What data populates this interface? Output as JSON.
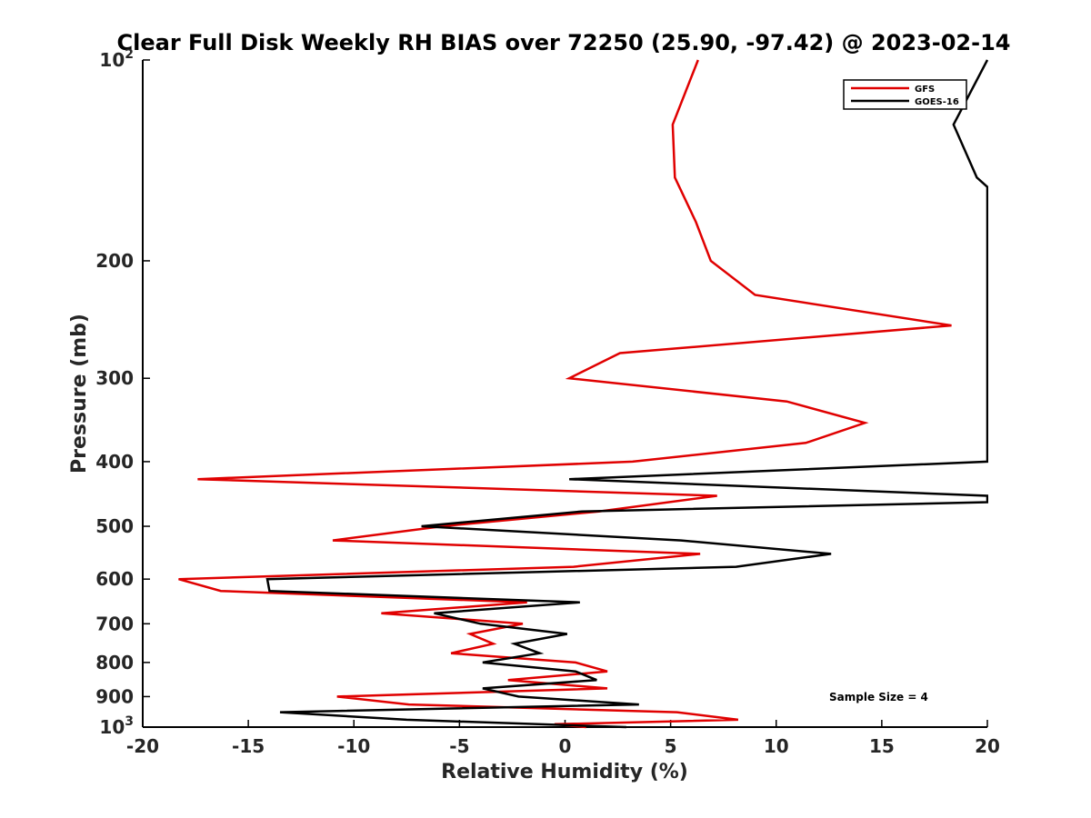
{
  "chart_data": {
    "type": "line",
    "title": "Clear Full Disk Weekly RH BIAS over 72250 (25.90, -97.42) @ 2023-02-14",
    "xlabel": "Relative Humidity (%)",
    "ylabel": "Pressure (mb)",
    "xlim": [
      -20,
      20
    ],
    "ylim": [
      100,
      1000
    ],
    "y_scale": "log",
    "y_reversed": true,
    "x_ticks": [
      "-20",
      "-15",
      "-10",
      "-5",
      "0",
      "5",
      "10",
      "15",
      "20"
    ],
    "y_ticks": [
      {
        "value": 100,
        "base": "10",
        "exp": "2"
      },
      {
        "value": 200,
        "label": "200"
      },
      {
        "value": 300,
        "label": "300"
      },
      {
        "value": 400,
        "label": "400"
      },
      {
        "value": 500,
        "label": "500"
      },
      {
        "value": 600,
        "label": "600"
      },
      {
        "value": 700,
        "label": "700"
      },
      {
        "value": 800,
        "label": "800"
      },
      {
        "value": 900,
        "label": "900"
      },
      {
        "value": 1000,
        "base": "10",
        "exp": "3"
      }
    ],
    "legend_position": "top-right",
    "grid": false,
    "annotation": "Sample Size = 4",
    "series": [
      {
        "name": "GFS",
        "color": "#e00000",
        "points": [
          [
            6.3,
            100
          ],
          [
            5.1,
            125
          ],
          [
            5.2,
            150
          ],
          [
            6.2,
            175
          ],
          [
            6.9,
            200
          ],
          [
            9.0,
            225
          ],
          [
            18.3,
            250
          ],
          [
            2.6,
            275
          ],
          [
            0.2,
            300
          ],
          [
            10.5,
            325
          ],
          [
            14.2,
            350
          ],
          [
            11.4,
            375
          ],
          [
            3.2,
            400
          ],
          [
            -17.4,
            425
          ],
          [
            7.2,
            450
          ],
          [
            1.6,
            475
          ],
          [
            -5.8,
            500
          ],
          [
            -11.0,
            525
          ],
          [
            6.4,
            550
          ],
          [
            0.4,
            575
          ],
          [
            -18.3,
            600
          ],
          [
            -16.3,
            625
          ],
          [
            -1.8,
            650
          ],
          [
            -8.7,
            675
          ],
          [
            -2.0,
            700
          ],
          [
            -4.5,
            725
          ],
          [
            -3.4,
            750
          ],
          [
            -5.4,
            775
          ],
          [
            0.5,
            800
          ],
          [
            2.0,
            825
          ],
          [
            -2.7,
            850
          ],
          [
            2.0,
            875
          ],
          [
            -10.8,
            900
          ],
          [
            -7.4,
            925
          ],
          [
            5.3,
            950
          ],
          [
            8.2,
            975
          ],
          [
            -0.5,
            990
          ],
          [
            1.0,
            1000
          ]
        ]
      },
      {
        "name": "GOES-16",
        "color": "#000000",
        "points": [
          [
            20.0,
            100
          ],
          [
            18.4,
            125
          ],
          [
            19.5,
            150
          ],
          [
            20.0,
            155
          ],
          [
            20.0,
            400
          ],
          [
            0.2,
            425
          ],
          [
            20.0,
            450
          ],
          [
            20.0,
            460
          ],
          [
            0.8,
            475
          ],
          [
            -6.8,
            500
          ],
          [
            5.5,
            525
          ],
          [
            12.6,
            550
          ],
          [
            8.1,
            575
          ],
          [
            -14.1,
            600
          ],
          [
            -14.0,
            625
          ],
          [
            0.7,
            650
          ],
          [
            -6.2,
            675
          ],
          [
            -4.0,
            700
          ],
          [
            0.1,
            725
          ],
          [
            -2.4,
            750
          ],
          [
            -1.2,
            775
          ],
          [
            -3.9,
            800
          ],
          [
            0.5,
            825
          ],
          [
            1.5,
            850
          ],
          [
            -3.9,
            875
          ],
          [
            -2.2,
            900
          ],
          [
            3.5,
            925
          ],
          [
            -13.5,
            950
          ],
          [
            -7.5,
            975
          ],
          [
            2.9,
            1000
          ]
        ]
      }
    ]
  }
}
